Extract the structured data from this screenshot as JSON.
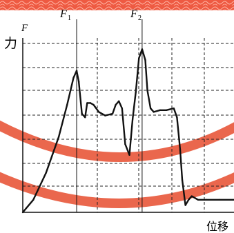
{
  "chart_data": {
    "type": "line",
    "x_axis_label": "位移",
    "y_axis_label": "力",
    "y_axis_symbol": "F",
    "annotations": [
      {
        "label": "F",
        "subscript": "1"
      },
      {
        "label": "F",
        "subscript": "2"
      }
    ],
    "grid": "dashed",
    "x_tick_labels": [],
    "y_tick_labels": [],
    "series": [
      {
        "values": [
          [
            0,
            0
          ],
          [
            0.05,
            0.07
          ],
          [
            0.11,
            0.22
          ],
          [
            0.17,
            0.42
          ],
          [
            0.21,
            0.6
          ],
          [
            0.24,
            0.75
          ],
          [
            0.255,
            0.79
          ],
          [
            0.265,
            0.73
          ],
          [
            0.28,
            0.55
          ],
          [
            0.295,
            0.53
          ],
          [
            0.305,
            0.61
          ],
          [
            0.32,
            0.61
          ],
          [
            0.335,
            0.6
          ],
          [
            0.36,
            0.56
          ],
          [
            0.39,
            0.54
          ],
          [
            0.425,
            0.55
          ],
          [
            0.44,
            0.6
          ],
          [
            0.455,
            0.62
          ],
          [
            0.47,
            0.58
          ],
          [
            0.485,
            0.38
          ],
          [
            0.505,
            0.32
          ],
          [
            0.52,
            0.52
          ],
          [
            0.535,
            0.67
          ],
          [
            0.55,
            0.86
          ],
          [
            0.565,
            0.91
          ],
          [
            0.58,
            0.85
          ],
          [
            0.59,
            0.68
          ],
          [
            0.605,
            0.58
          ],
          [
            0.62,
            0.56
          ],
          [
            0.65,
            0.57
          ],
          [
            0.68,
            0.57
          ],
          [
            0.715,
            0.58
          ],
          [
            0.73,
            0.53
          ],
          [
            0.745,
            0.35
          ],
          [
            0.755,
            0.18
          ],
          [
            0.77,
            0.04
          ],
          [
            0.785,
            0.07
          ],
          [
            0.8,
            0.09
          ],
          [
            0.83,
            0.07
          ],
          [
            0.87,
            0.07
          ],
          [
            0.93,
            0.07
          ],
          [
            1.0,
            0.07
          ]
        ]
      }
    ],
    "markers": [
      {
        "name": "F1",
        "x": 0.255
      },
      {
        "name": "F2",
        "x": 0.565
      }
    ],
    "xlim": [
      0,
      1
    ],
    "ylim": [
      0,
      1
    ]
  },
  "colors": {
    "background": "#ffffff",
    "curve": "#111111",
    "grid": "#222222",
    "decor_bands": "#e8563a",
    "top_pattern": "#ee5a42"
  },
  "decor": {
    "top_pattern_icon": "wavy-pattern-icon",
    "bands_icon": "red-arc-band-icon"
  }
}
